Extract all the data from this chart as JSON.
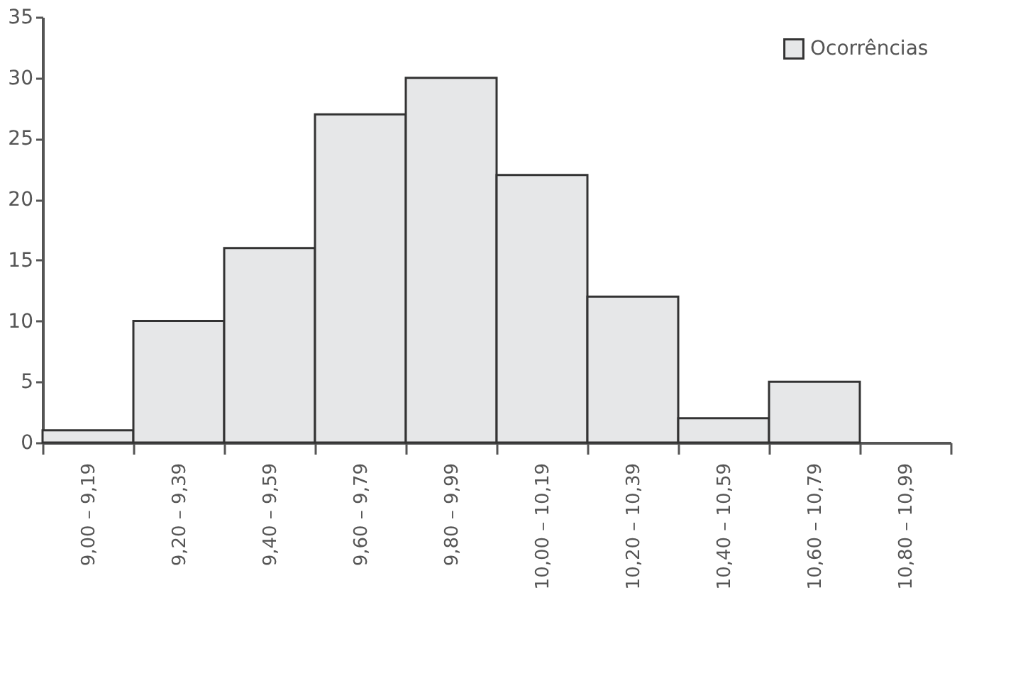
{
  "chart_data": {
    "type": "bar",
    "categories": [
      "9,00 – 9,19",
      "9,20 – 9,39",
      "9,40 – 9,59",
      "9,60 – 9,79",
      "9,80 – 9,99",
      "10,00 – 10,19",
      "10,20 – 10,39",
      "10,40 – 10,59",
      "10,60 – 10,79",
      "10,80 – 10,99"
    ],
    "series": [
      {
        "name": "Ocorrências",
        "color": "#e6e7e8",
        "values": [
          1,
          10,
          16,
          27,
          30,
          22,
          12,
          2,
          5,
          0
        ]
      }
    ],
    "ylim": [
      0,
      35
    ],
    "yticks": [
      0,
      5,
      10,
      15,
      20,
      25,
      30,
      35
    ],
    "grid": false,
    "legend": "top right"
  }
}
